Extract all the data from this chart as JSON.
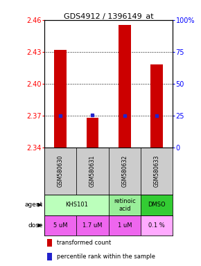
{
  "title": "GDS4912 / 1396149_at",
  "samples": [
    "GSM580630",
    "GSM580631",
    "GSM580632",
    "GSM580633"
  ],
  "transformed_counts": [
    2.432,
    2.368,
    2.455,
    2.418
  ],
  "percentile_values": [
    2.37,
    2.371,
    2.37,
    2.37
  ],
  "ylim_left": [
    2.34,
    2.46
  ],
  "ylim_right": [
    0,
    100
  ],
  "yticks_left": [
    2.34,
    2.37,
    2.4,
    2.43,
    2.46
  ],
  "yticks_right": [
    0,
    25,
    50,
    75,
    100
  ],
  "ytick_labels_left": [
    "2.34",
    "2.37",
    "2.40",
    "2.43",
    "2.46"
  ],
  "ytick_labels_right": [
    "0",
    "25",
    "50",
    "75",
    "100%"
  ],
  "hlines": [
    2.37,
    2.4,
    2.43
  ],
  "bar_color": "#cc0000",
  "dot_color": "#2222cc",
  "agent_info": [
    {
      "start": 0,
      "end": 1,
      "name": "KHS101",
      "color": "#bbffbb"
    },
    {
      "start": 2,
      "end": 2,
      "name": "retinoic\nacid",
      "color": "#99ee99"
    },
    {
      "start": 3,
      "end": 3,
      "name": "DMSO",
      "color": "#33cc33"
    }
  ],
  "dose_info": [
    {
      "col": 0,
      "label": "5 uM",
      "color": "#ee66ee"
    },
    {
      "col": 1,
      "label": "1.7 uM",
      "color": "#ee66ee"
    },
    {
      "col": 2,
      "label": "1 uM",
      "color": "#ee66ee"
    },
    {
      "col": 3,
      "label": "0.1 %",
      "color": "#ffaaff"
    }
  ],
  "sample_bg": "#cccccc",
  "legend_bar_color": "#cc0000",
  "legend_dot_color": "#2222cc"
}
